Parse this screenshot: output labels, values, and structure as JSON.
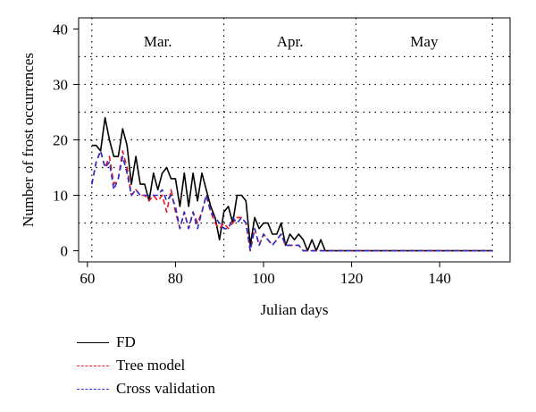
{
  "chart_data": {
    "type": "line",
    "xlabel": "Julian days",
    "ylabel": "Number of frost occurrences",
    "xlim": [
      58,
      156
    ],
    "ylim": [
      -2,
      42
    ],
    "xticks": [
      60,
      80,
      100,
      120,
      140
    ],
    "yticks": [
      0,
      10,
      20,
      30,
      40
    ],
    "grid": true,
    "vlines": [
      61,
      91,
      121,
      152
    ],
    "months": [
      {
        "label": "Mar.",
        "x": 76
      },
      {
        "label": "Apr.",
        "x": 106
      },
      {
        "label": "May",
        "x": 136.5
      }
    ],
    "legend_position": "bottom-left",
    "series": [
      {
        "name": "FD",
        "color": "#000000",
        "dash": "solid",
        "x": [
          61,
          62,
          63,
          64,
          65,
          66,
          67,
          68,
          69,
          70,
          71,
          72,
          73,
          74,
          75,
          76,
          77,
          78,
          79,
          80,
          81,
          82,
          83,
          84,
          85,
          86,
          87,
          88,
          89,
          90,
          91,
          92,
          93,
          94,
          95,
          96,
          97,
          98,
          99,
          100,
          101,
          102,
          103,
          104,
          105,
          106,
          107,
          108,
          109,
          110,
          111,
          112,
          113,
          114,
          152
        ],
        "y": [
          19,
          19,
          18,
          24,
          20,
          17,
          17,
          22,
          19,
          12,
          17,
          12,
          12,
          9,
          14,
          11,
          14,
          15,
          13,
          13,
          8,
          14,
          8,
          14,
          9,
          14,
          11,
          8,
          6,
          2,
          7,
          8,
          5,
          10,
          10,
          9,
          1,
          6,
          4,
          5,
          5,
          3,
          3,
          5,
          1,
          3,
          2,
          3,
          2,
          0,
          2,
          0,
          2,
          0,
          0
        ]
      },
      {
        "name": "Tree model",
        "color": "#e8161c",
        "dash": "dashed",
        "x": [
          61,
          62,
          63,
          64,
          65,
          66,
          67,
          68,
          69,
          70,
          71,
          72,
          73,
          74,
          75,
          76,
          77,
          78,
          79,
          80,
          81,
          82,
          83,
          84,
          85,
          86,
          87,
          88,
          89,
          90,
          91,
          92,
          93,
          94,
          95,
          96,
          97,
          98,
          99,
          100,
          101,
          102,
          103,
          104,
          105,
          106,
          107,
          108,
          109,
          110,
          111,
          112,
          113,
          114,
          152
        ],
        "y": [
          12,
          16,
          18,
          15,
          17,
          12,
          13,
          18,
          15,
          10,
          11,
          10,
          10,
          9,
          10,
          9,
          10,
          7,
          11,
          7,
          4,
          7,
          4,
          7,
          5,
          7,
          10,
          7,
          5,
          4,
          5,
          4,
          5,
          6,
          6,
          5,
          0,
          4,
          1,
          3,
          2,
          1,
          2,
          3,
          1,
          1,
          1,
          1,
          0,
          0,
          0,
          0,
          0,
          0,
          0
        ]
      },
      {
        "name": "Cross validation",
        "color": "#2b2bc8",
        "dash": "dashed",
        "x": [
          61,
          62,
          63,
          64,
          65,
          66,
          67,
          68,
          69,
          70,
          71,
          72,
          73,
          74,
          75,
          76,
          77,
          78,
          79,
          80,
          81,
          82,
          83,
          84,
          85,
          86,
          87,
          88,
          89,
          90,
          91,
          92,
          93,
          94,
          95,
          96,
          97,
          98,
          99,
          100,
          101,
          102,
          103,
          104,
          105,
          106,
          107,
          108,
          109,
          110,
          111,
          112,
          113,
          114,
          152
        ],
        "y": [
          12,
          16,
          18,
          15,
          16,
          11,
          13,
          17,
          14,
          10,
          11,
          10,
          10,
          10,
          10,
          10,
          11,
          9,
          10,
          8,
          4,
          7,
          4,
          7,
          4,
          7,
          10,
          7,
          6,
          5,
          4,
          4,
          6,
          5,
          6,
          5,
          0,
          4,
          1,
          3,
          2,
          1,
          2,
          3,
          1,
          1,
          1,
          1,
          0,
          0,
          0,
          0,
          0,
          0,
          0
        ]
      }
    ]
  }
}
